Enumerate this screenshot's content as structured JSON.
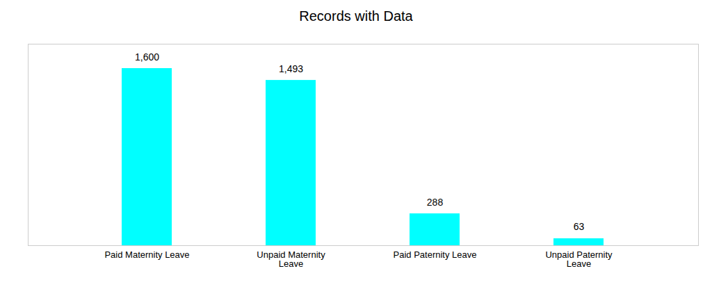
{
  "chart_data": {
    "type": "bar",
    "title": "Records with Data",
    "categories": [
      "Paid Maternity Leave",
      "Unpaid Maternity\nLeave",
      "Paid Paternity Leave",
      "Unpaid Paternity\nLeave"
    ],
    "values": [
      1600,
      1493,
      288,
      63
    ],
    "value_labels": [
      "1,600",
      "1,493",
      "288",
      "63"
    ],
    "data_labels": true,
    "color": "#00FFFF",
    "ylim": [
      0,
      1820
    ],
    "tick_labels": "x",
    "grid": false
  }
}
